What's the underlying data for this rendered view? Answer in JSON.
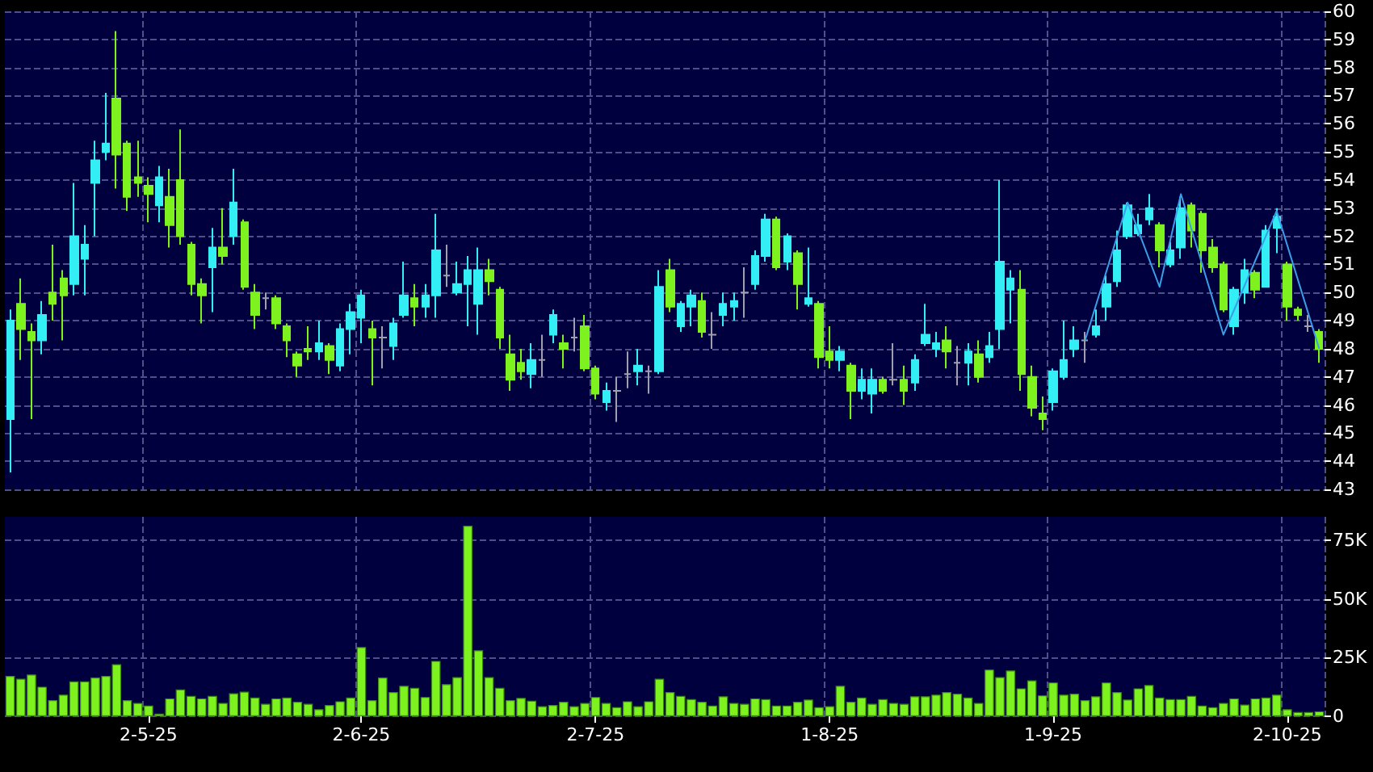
{
  "chart_data": [
    {
      "type": "candlestick",
      "tick_labels": "y",
      "grid": true,
      "ylim": [
        43,
        60
      ],
      "yticks": [
        43,
        44,
        45,
        46,
        47,
        48,
        49,
        50,
        51,
        52,
        53,
        54,
        55,
        56,
        57,
        58,
        59,
        60
      ],
      "categories": [
        null,
        null,
        null,
        null,
        null,
        null,
        null,
        null,
        null,
        null,
        null,
        null,
        null,
        null,
        null,
        null,
        null,
        null,
        null,
        null,
        null,
        null,
        null,
        null,
        null,
        null,
        null,
        null,
        null,
        null,
        null,
        null,
        null,
        null,
        null,
        null,
        null,
        null,
        null,
        null,
        null,
        null,
        null,
        null,
        null,
        null,
        null,
        null,
        null,
        null,
        null,
        null,
        null,
        null,
        null,
        null,
        null,
        null,
        null,
        null,
        null,
        null,
        null,
        null,
        null,
        null,
        null,
        null,
        null,
        null,
        null,
        null,
        null,
        null,
        null,
        null,
        null,
        null,
        null,
        null,
        null,
        null,
        null,
        null,
        null,
        null,
        null,
        null,
        null,
        null,
        null,
        null,
        null,
        null,
        null,
        null,
        null,
        null,
        null,
        null,
        null,
        null,
        null,
        null,
        null,
        null,
        null,
        null,
        null,
        null,
        null,
        null,
        null,
        null,
        null,
        null,
        null,
        null,
        null,
        null,
        null,
        null,
        null,
        null
      ],
      "series": [
        {
          "type": "candlestick",
          "ohlc": [
            [
              45.5,
              49.4,
              43.6,
              49.0
            ],
            [
              49.6,
              50.5,
              47.6,
              48.7
            ],
            [
              48.6,
              48.9,
              45.5,
              48.3
            ],
            [
              48.3,
              49.7,
              47.8,
              49.2
            ],
            [
              50.0,
              51.7,
              49.0,
              49.6
            ],
            [
              50.5,
              50.8,
              48.3,
              49.9
            ],
            [
              50.3,
              53.9,
              49.9,
              52.0
            ],
            [
              51.2,
              52.4,
              49.9,
              51.7
            ],
            [
              53.9,
              55.4,
              52.0,
              54.7
            ],
            [
              55.0,
              57.1,
              54.7,
              55.3
            ],
            [
              56.9,
              59.3,
              53.7,
              54.9
            ],
            [
              55.3,
              55.4,
              52.9,
              53.4
            ],
            [
              54.1,
              55.4,
              53.4,
              53.9
            ],
            [
              53.8,
              54.1,
              52.5,
              53.5
            ],
            [
              53.1,
              54.5,
              52.5,
              54.1
            ],
            [
              53.4,
              54.4,
              51.6,
              52.4
            ],
            [
              54.0,
              55.8,
              51.7,
              52.0
            ],
            [
              51.7,
              51.8,
              49.9,
              50.3
            ],
            [
              50.3,
              50.5,
              48.9,
              49.9
            ],
            [
              50.9,
              52.3,
              49.3,
              51.6
            ],
            [
              51.6,
              53.0,
              51.0,
              51.3
            ],
            [
              52.0,
              54.4,
              51.7,
              53.2
            ],
            [
              52.5,
              52.6,
              50.1,
              50.2
            ],
            [
              50.0,
              50.3,
              48.7,
              49.2
            ],
            [
              49.8,
              50.0,
              49.4,
              49.8
            ],
            [
              49.8,
              49.9,
              48.7,
              48.9
            ],
            [
              48.8,
              48.9,
              47.7,
              48.3
            ],
            [
              47.8,
              47.9,
              47.0,
              47.4
            ],
            [
              48.0,
              48.8,
              47.6,
              47.9
            ],
            [
              47.9,
              49.0,
              47.6,
              48.2
            ],
            [
              48.1,
              48.2,
              47.1,
              47.6
            ],
            [
              47.4,
              48.9,
              47.2,
              48.7
            ],
            [
              48.7,
              49.6,
              47.8,
              49.3
            ],
            [
              49.1,
              50.1,
              48.2,
              49.9
            ],
            [
              48.7,
              49.0,
              46.7,
              48.4
            ],
            [
              48.4,
              48.8,
              47.3,
              48.4
            ],
            [
              48.1,
              49.1,
              47.6,
              48.9
            ],
            [
              49.2,
              51.1,
              49.1,
              49.9
            ],
            [
              49.8,
              50.3,
              48.8,
              49.5
            ],
            [
              49.5,
              50.3,
              49.1,
              49.9
            ],
            [
              49.9,
              52.8,
              49.1,
              51.5
            ],
            [
              50.6,
              51.7,
              50.2,
              50.6
            ],
            [
              50.0,
              51.1,
              49.9,
              50.3
            ],
            [
              50.3,
              51.3,
              48.8,
              50.8
            ],
            [
              49.6,
              51.6,
              48.5,
              50.8
            ],
            [
              50.8,
              51.2,
              49.9,
              50.4
            ],
            [
              50.1,
              50.2,
              48.0,
              48.4
            ],
            [
              47.8,
              48.5,
              46.5,
              46.9
            ],
            [
              47.5,
              48.0,
              46.9,
              47.2
            ],
            [
              47.1,
              48.2,
              46.6,
              47.6
            ],
            [
              47.6,
              48.5,
              47.0,
              47.6
            ],
            [
              48.5,
              49.4,
              48.2,
              49.2
            ],
            [
              48.2,
              48.5,
              47.3,
              48.0
            ],
            [
              48.4,
              49.1,
              47.9,
              48.4
            ],
            [
              48.8,
              49.2,
              47.2,
              47.3
            ],
            [
              47.3,
              47.4,
              46.2,
              46.4
            ],
            [
              46.1,
              46.8,
              45.8,
              46.5
            ],
            [
              46.5,
              47.0,
              45.4,
              46.5
            ],
            [
              47.1,
              47.9,
              46.6,
              47.1
            ],
            [
              47.2,
              48.0,
              46.7,
              47.4
            ],
            [
              47.2,
              47.4,
              46.4,
              47.2
            ],
            [
              47.2,
              50.8,
              47.1,
              50.2
            ],
            [
              50.8,
              51.2,
              49.3,
              49.5
            ],
            [
              48.8,
              49.7,
              48.6,
              49.6
            ],
            [
              49.5,
              50.1,
              48.8,
              49.9
            ],
            [
              49.7,
              50.0,
              48.4,
              48.6
            ],
            [
              48.5,
              49.3,
              48.0,
              48.5
            ],
            [
              49.2,
              50.0,
              48.8,
              49.6
            ],
            [
              49.5,
              50.0,
              49.0,
              49.7
            ],
            [
              50.0,
              50.9,
              49.1,
              50.0
            ],
            [
              50.3,
              51.5,
              50.1,
              51.3
            ],
            [
              51.3,
              52.8,
              51.1,
              52.6
            ],
            [
              52.6,
              52.7,
              50.8,
              50.9
            ],
            [
              51.1,
              52.1,
              50.8,
              52.0
            ],
            [
              51.4,
              51.5,
              49.4,
              50.3
            ],
            [
              49.6,
              51.6,
              49.5,
              49.8
            ],
            [
              49.6,
              49.7,
              47.3,
              47.7
            ],
            [
              47.9,
              48.8,
              47.3,
              47.6
            ],
            [
              47.6,
              48.1,
              47.2,
              47.9
            ],
            [
              47.4,
              47.5,
              45.5,
              46.5
            ],
            [
              46.5,
              47.3,
              46.2,
              46.9
            ],
            [
              46.4,
              47.3,
              45.7,
              46.9
            ],
            [
              46.9,
              47.0,
              46.4,
              46.5
            ],
            [
              46.9,
              48.2,
              46.7,
              46.9
            ],
            [
              46.9,
              47.4,
              46.0,
              46.5
            ],
            [
              46.8,
              47.8,
              46.5,
              47.6
            ],
            [
              48.2,
              49.6,
              48.1,
              48.5
            ],
            [
              48.0,
              48.6,
              47.7,
              48.2
            ],
            [
              48.3,
              48.8,
              47.3,
              47.9
            ],
            [
              47.5,
              48.1,
              46.7,
              47.5
            ],
            [
              47.5,
              48.2,
              46.7,
              47.9
            ],
            [
              47.8,
              48.3,
              46.8,
              47.0
            ],
            [
              47.7,
              48.6,
              47.5,
              48.1
            ],
            [
              48.7,
              54.0,
              48.0,
              51.1
            ],
            [
              50.1,
              50.8,
              48.9,
              50.5
            ],
            [
              50.1,
              50.8,
              46.5,
              47.1
            ],
            [
              47.0,
              47.4,
              45.6,
              45.9
            ],
            [
              45.7,
              46.3,
              45.1,
              45.5
            ],
            [
              46.1,
              47.3,
              45.8,
              47.2
            ],
            [
              47.0,
              49.0,
              46.9,
              47.6
            ],
            [
              48.0,
              48.8,
              47.7,
              48.3
            ],
            [
              48.3,
              48.6,
              47.5,
              48.3
            ],
            [
              48.5,
              49.4,
              48.4,
              48.8
            ],
            [
              49.5,
              50.6,
              49.0,
              50.3
            ],
            [
              50.4,
              52.2,
              50.2,
              51.5
            ],
            [
              52.0,
              53.2,
              51.9,
              53.1
            ],
            [
              52.1,
              52.8,
              52.0,
              52.4
            ],
            [
              52.6,
              53.5,
              52.4,
              53.0
            ],
            [
              52.4,
              52.5,
              50.9,
              51.5
            ],
            [
              51.0,
              51.8,
              50.9,
              51.5
            ],
            [
              51.6,
              53.4,
              51.2,
              53.0
            ],
            [
              53.1,
              53.2,
              51.6,
              52.2
            ],
            [
              52.8,
              52.9,
              50.7,
              51.5
            ],
            [
              51.6,
              51.9,
              50.7,
              50.9
            ],
            [
              51.0,
              51.1,
              49.3,
              49.4
            ],
            [
              48.8,
              50.2,
              48.5,
              50.1
            ],
            [
              50.0,
              51.2,
              49.6,
              50.8
            ],
            [
              50.7,
              50.8,
              49.8,
              50.1
            ],
            [
              50.2,
              52.4,
              50.2,
              52.2
            ],
            [
              52.3,
              53.0,
              51.4,
              52.7
            ],
            [
              51.0,
              51.1,
              49.0,
              49.5
            ],
            [
              49.4,
              49.5,
              49.0,
              49.2
            ],
            [
              48.8,
              49.2,
              48.6,
              48.8
            ],
            [
              48.6,
              48.7,
              47.5,
              48.0
            ]
          ],
          "colors": [
            "#33eef5",
            "#7df21e",
            "#7df21e",
            "#33eef5",
            "#7df21e",
            "#7df21e",
            "#33eef5",
            "#33eef5",
            "#33eef5",
            "#33eef5",
            "#7df21e",
            "#7df21e",
            "#7df21e",
            "#7df21e",
            "#33eef5",
            "#7df21e",
            "#7df21e",
            "#7df21e",
            "#7df21e",
            "#33eef5",
            "#7df21e",
            "#33eef5",
            "#7df21e",
            "#7df21e",
            "#a0a0b0",
            "#7df21e",
            "#7df21e",
            "#7df21e",
            "#7df21e",
            "#33eef5",
            "#7df21e",
            "#33eef5",
            "#33eef5",
            "#33eef5",
            "#7df21e",
            "#a0a0b0",
            "#33eef5",
            "#33eef5",
            "#7df21e",
            "#33eef5",
            "#33eef5",
            "#a0a0b0",
            "#33eef5",
            "#33eef5",
            "#33eef5",
            "#7df21e",
            "#7df21e",
            "#7df21e",
            "#7df21e",
            "#33eef5",
            "#a0a0b0",
            "#33eef5",
            "#7df21e",
            "#a0a0b0",
            "#7df21e",
            "#7df21e",
            "#33eef5",
            "#a0a0b0",
            "#a0a0b0",
            "#33eef5",
            "#a0a0b0",
            "#33eef5",
            "#7df21e",
            "#33eef5",
            "#33eef5",
            "#7df21e",
            "#a0a0b0",
            "#33eef5",
            "#33eef5",
            "#a0a0b0",
            "#33eef5",
            "#33eef5",
            "#7df21e",
            "#33eef5",
            "#7df21e",
            "#33eef5",
            "#7df21e",
            "#7df21e",
            "#33eef5",
            "#7df21e",
            "#33eef5",
            "#33eef5",
            "#7df21e",
            "#a0a0b0",
            "#7df21e",
            "#33eef5",
            "#33eef5",
            "#33eef5",
            "#7df21e",
            "#a0a0b0",
            "#33eef5",
            "#7df21e",
            "#33eef5",
            "#33eef5",
            "#33eef5",
            "#7df21e",
            "#7df21e",
            "#7df21e",
            "#33eef5",
            "#33eef5",
            "#33eef5",
            "#a0a0b0",
            "#33eef5",
            "#33eef5",
            "#33eef5",
            "#33eef5",
            "#33eef5",
            "#33eef5",
            "#7df21e",
            "#33eef5",
            "#33eef5",
            "#7df21e",
            "#7df21e",
            "#7df21e",
            "#7df21e",
            "#33eef5",
            "#33eef5",
            "#7df21e",
            "#33eef5",
            "#33eef5",
            "#7df21e",
            "#7df21e",
            "#a0a0b0",
            "#7df21e"
          ]
        },
        {
          "type": "line",
          "color": "#3a9ee8",
          "values": [
            null,
            null,
            null,
            null,
            null,
            null,
            null,
            null,
            null,
            null,
            null,
            null,
            null,
            null,
            null,
            null,
            null,
            null,
            null,
            null,
            null,
            null,
            null,
            null,
            null,
            null,
            null,
            null,
            null,
            null,
            null,
            null,
            null,
            null,
            null,
            null,
            null,
            null,
            null,
            null,
            null,
            null,
            null,
            null,
            null,
            null,
            null,
            null,
            null,
            null,
            null,
            null,
            null,
            null,
            null,
            null,
            null,
            null,
            null,
            null,
            null,
            null,
            null,
            null,
            null,
            null,
            null,
            null,
            null,
            null,
            null,
            null,
            null,
            null,
            null,
            null,
            null,
            null,
            null,
            null,
            null,
            null,
            null,
            null,
            null,
            null,
            null,
            null,
            null,
            null,
            null,
            null,
            null,
            null,
            null,
            null,
            null,
            null,
            null,
            null,
            null,
            48.3,
            null,
            null,
            null,
            53.2,
            null,
            null,
            50.2,
            null,
            53.5,
            null,
            null,
            null,
            48.5,
            null,
            null,
            null,
            null,
            52.9,
            null,
            null,
            null,
            48.0
          ]
        }
      ]
    },
    {
      "type": "bar",
      "grid": true,
      "color": "#7df21e",
      "ylim": [
        0,
        85000
      ],
      "yticks": [
        {
          "value": 0,
          "label": "0"
        },
        {
          "value": 25000,
          "label": "25K"
        },
        {
          "value": 50000,
          "label": "50K"
        },
        {
          "value": 75000,
          "label": "75K"
        }
      ],
      "categories": [
        null,
        null,
        null,
        null,
        null,
        null,
        null,
        null,
        null,
        null,
        null,
        null,
        null,
        "2-5-25",
        null,
        null,
        null,
        null,
        null,
        null,
        null,
        null,
        null,
        null,
        null,
        null,
        null,
        null,
        null,
        null,
        null,
        null,
        null,
        "2-6-25",
        null,
        null,
        null,
        null,
        null,
        null,
        null,
        null,
        null,
        null,
        null,
        null,
        null,
        null,
        null,
        null,
        null,
        null,
        null,
        null,
        null,
        "2-7-25",
        null,
        null,
        null,
        null,
        null,
        null,
        null,
        null,
        null,
        null,
        null,
        null,
        null,
        null,
        null,
        null,
        null,
        null,
        null,
        null,
        null,
        "1-8-25",
        null,
        null,
        null,
        null,
        null,
        null,
        null,
        null,
        null,
        null,
        null,
        null,
        null,
        null,
        null,
        null,
        null,
        null,
        null,
        null,
        "1-9-25",
        null,
        null,
        null,
        null,
        null,
        null,
        null,
        null,
        null,
        null,
        null,
        null,
        null,
        null,
        null,
        null,
        null,
        null,
        null,
        null,
        null,
        "2-10-25",
        null,
        null,
        null
      ],
      "values": [
        17200,
        16000,
        17800,
        12600,
        6900,
        9200,
        14900,
        14900,
        16500,
        17200,
        22200,
        6900,
        5700,
        4600,
        1100,
        7600,
        11400,
        8700,
        7600,
        8700,
        5700,
        9800,
        10500,
        8000,
        5300,
        7600,
        8000,
        6200,
        5300,
        3000,
        4800,
        6400,
        8000,
        29500,
        6900,
        16500,
        10300,
        13000,
        12100,
        8200,
        23600,
        13700,
        16700,
        81200,
        28100,
        16700,
        12100,
        6900,
        7800,
        6600,
        4300,
        4800,
        6200,
        4300,
        5700,
        8200,
        5700,
        3900,
        6400,
        4300,
        6400,
        16000,
        10300,
        8700,
        7300,
        6200,
        4600,
        8500,
        5700,
        5300,
        7600,
        7300,
        4600,
        4600,
        6200,
        7100,
        3900,
        4300,
        13000,
        6200,
        8000,
        5300,
        7300,
        5700,
        5300,
        8500,
        8500,
        9200,
        10300,
        9600,
        8000,
        5700,
        19900,
        16700,
        19500,
        11900,
        15300,
        8900,
        14400,
        9200,
        9600,
        6900,
        8500,
        14400,
        10300,
        7100,
        11900,
        13300,
        8000,
        7300,
        7300,
        8700,
        4600,
        3900,
        5700,
        7600,
        5000,
        7600,
        8000,
        9200,
        3000,
        1800,
        1800,
        2100
      ]
    }
  ]
}
